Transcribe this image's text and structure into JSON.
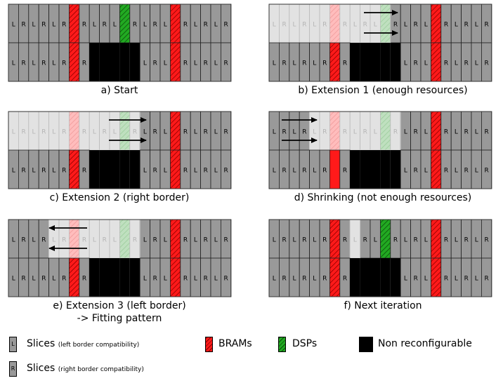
{
  "colors": {
    "slice": "#999999",
    "slice_faded": "#e0e0e0",
    "bram": "#ff1a1a",
    "bram_dark": "#880000",
    "dsp": "#22aa22",
    "dsp_dark": "#0b4d0b",
    "nonreconfigurable": "#000000",
    "region": "#eeeeee"
  },
  "slice_letters": {
    "left": "L",
    "right": "R"
  },
  "panels": [
    {
      "id": "a",
      "caption": "a) Start"
    },
    {
      "id": "b",
      "caption": "b) Extension 1 (enough resources)"
    },
    {
      "id": "c",
      "caption": "c) Extension 2 (right border)"
    },
    {
      "id": "d",
      "caption": "d) Shrinking (not enough resources)"
    },
    {
      "id": "e",
      "caption": "e) Extension 3 (left border)",
      "caption_line2": "-> Fitting pattern"
    },
    {
      "id": "f",
      "caption": "f) Next iteration"
    }
  ],
  "legend": {
    "slices_left_label": "Slices",
    "slices_left_note": "(left border compatibility)",
    "slices_right_label": "Slices",
    "slices_right_note": "(right border compatibility)",
    "bram_label": "BRAMs",
    "dsp_label": "DSPs",
    "nonreconf_label": "Non reconfigurable",
    "slice_left_letter": "L",
    "slice_right_letter": "R"
  }
}
